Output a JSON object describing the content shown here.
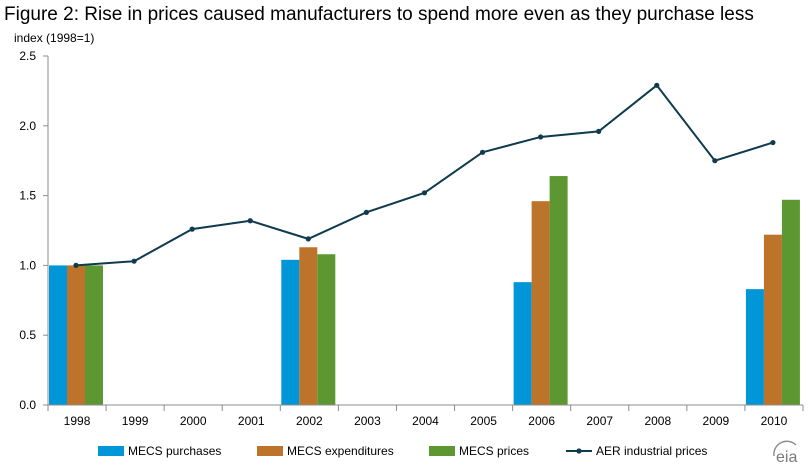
{
  "chart_data": {
    "type": "bar",
    "title": "Figure 2: Rise in prices caused manufacturers to spend more even as they purchase less",
    "ylabel": "index (1998=1)",
    "xlabel": "",
    "ylim": [
      0,
      2.5
    ],
    "yticks": [
      "0.0",
      "0.5",
      "1.0",
      "1.5",
      "2.0",
      "2.5"
    ],
    "categories": [
      "1998",
      "1999",
      "2000",
      "2001",
      "2002",
      "2003",
      "2004",
      "2005",
      "2006",
      "2007",
      "2008",
      "2009",
      "2010"
    ],
    "grid": false,
    "legend_position": "bottom",
    "series": [
      {
        "name": "MECS purchases",
        "type": "bar",
        "color": "#0096d7",
        "values": [
          1.0,
          null,
          null,
          null,
          1.04,
          null,
          null,
          null,
          0.88,
          null,
          null,
          null,
          0.83
        ]
      },
      {
        "name": "MECS expenditures",
        "type": "bar",
        "color": "#bd732a",
        "values": [
          1.0,
          null,
          null,
          null,
          1.13,
          null,
          null,
          null,
          1.46,
          null,
          null,
          null,
          1.22
        ]
      },
      {
        "name": "MECS prices",
        "type": "bar",
        "color": "#5d9732",
        "values": [
          1.0,
          null,
          null,
          null,
          1.08,
          null,
          null,
          null,
          1.64,
          null,
          null,
          null,
          1.47
        ]
      },
      {
        "name": "AER industrial prices",
        "type": "line",
        "color": "#0f3b4f",
        "values": [
          1.0,
          1.03,
          1.26,
          1.32,
          1.19,
          1.38,
          1.52,
          1.81,
          1.92,
          1.96,
          2.29,
          1.75,
          1.88
        ]
      }
    ]
  },
  "logo": {
    "text": "eia"
  }
}
